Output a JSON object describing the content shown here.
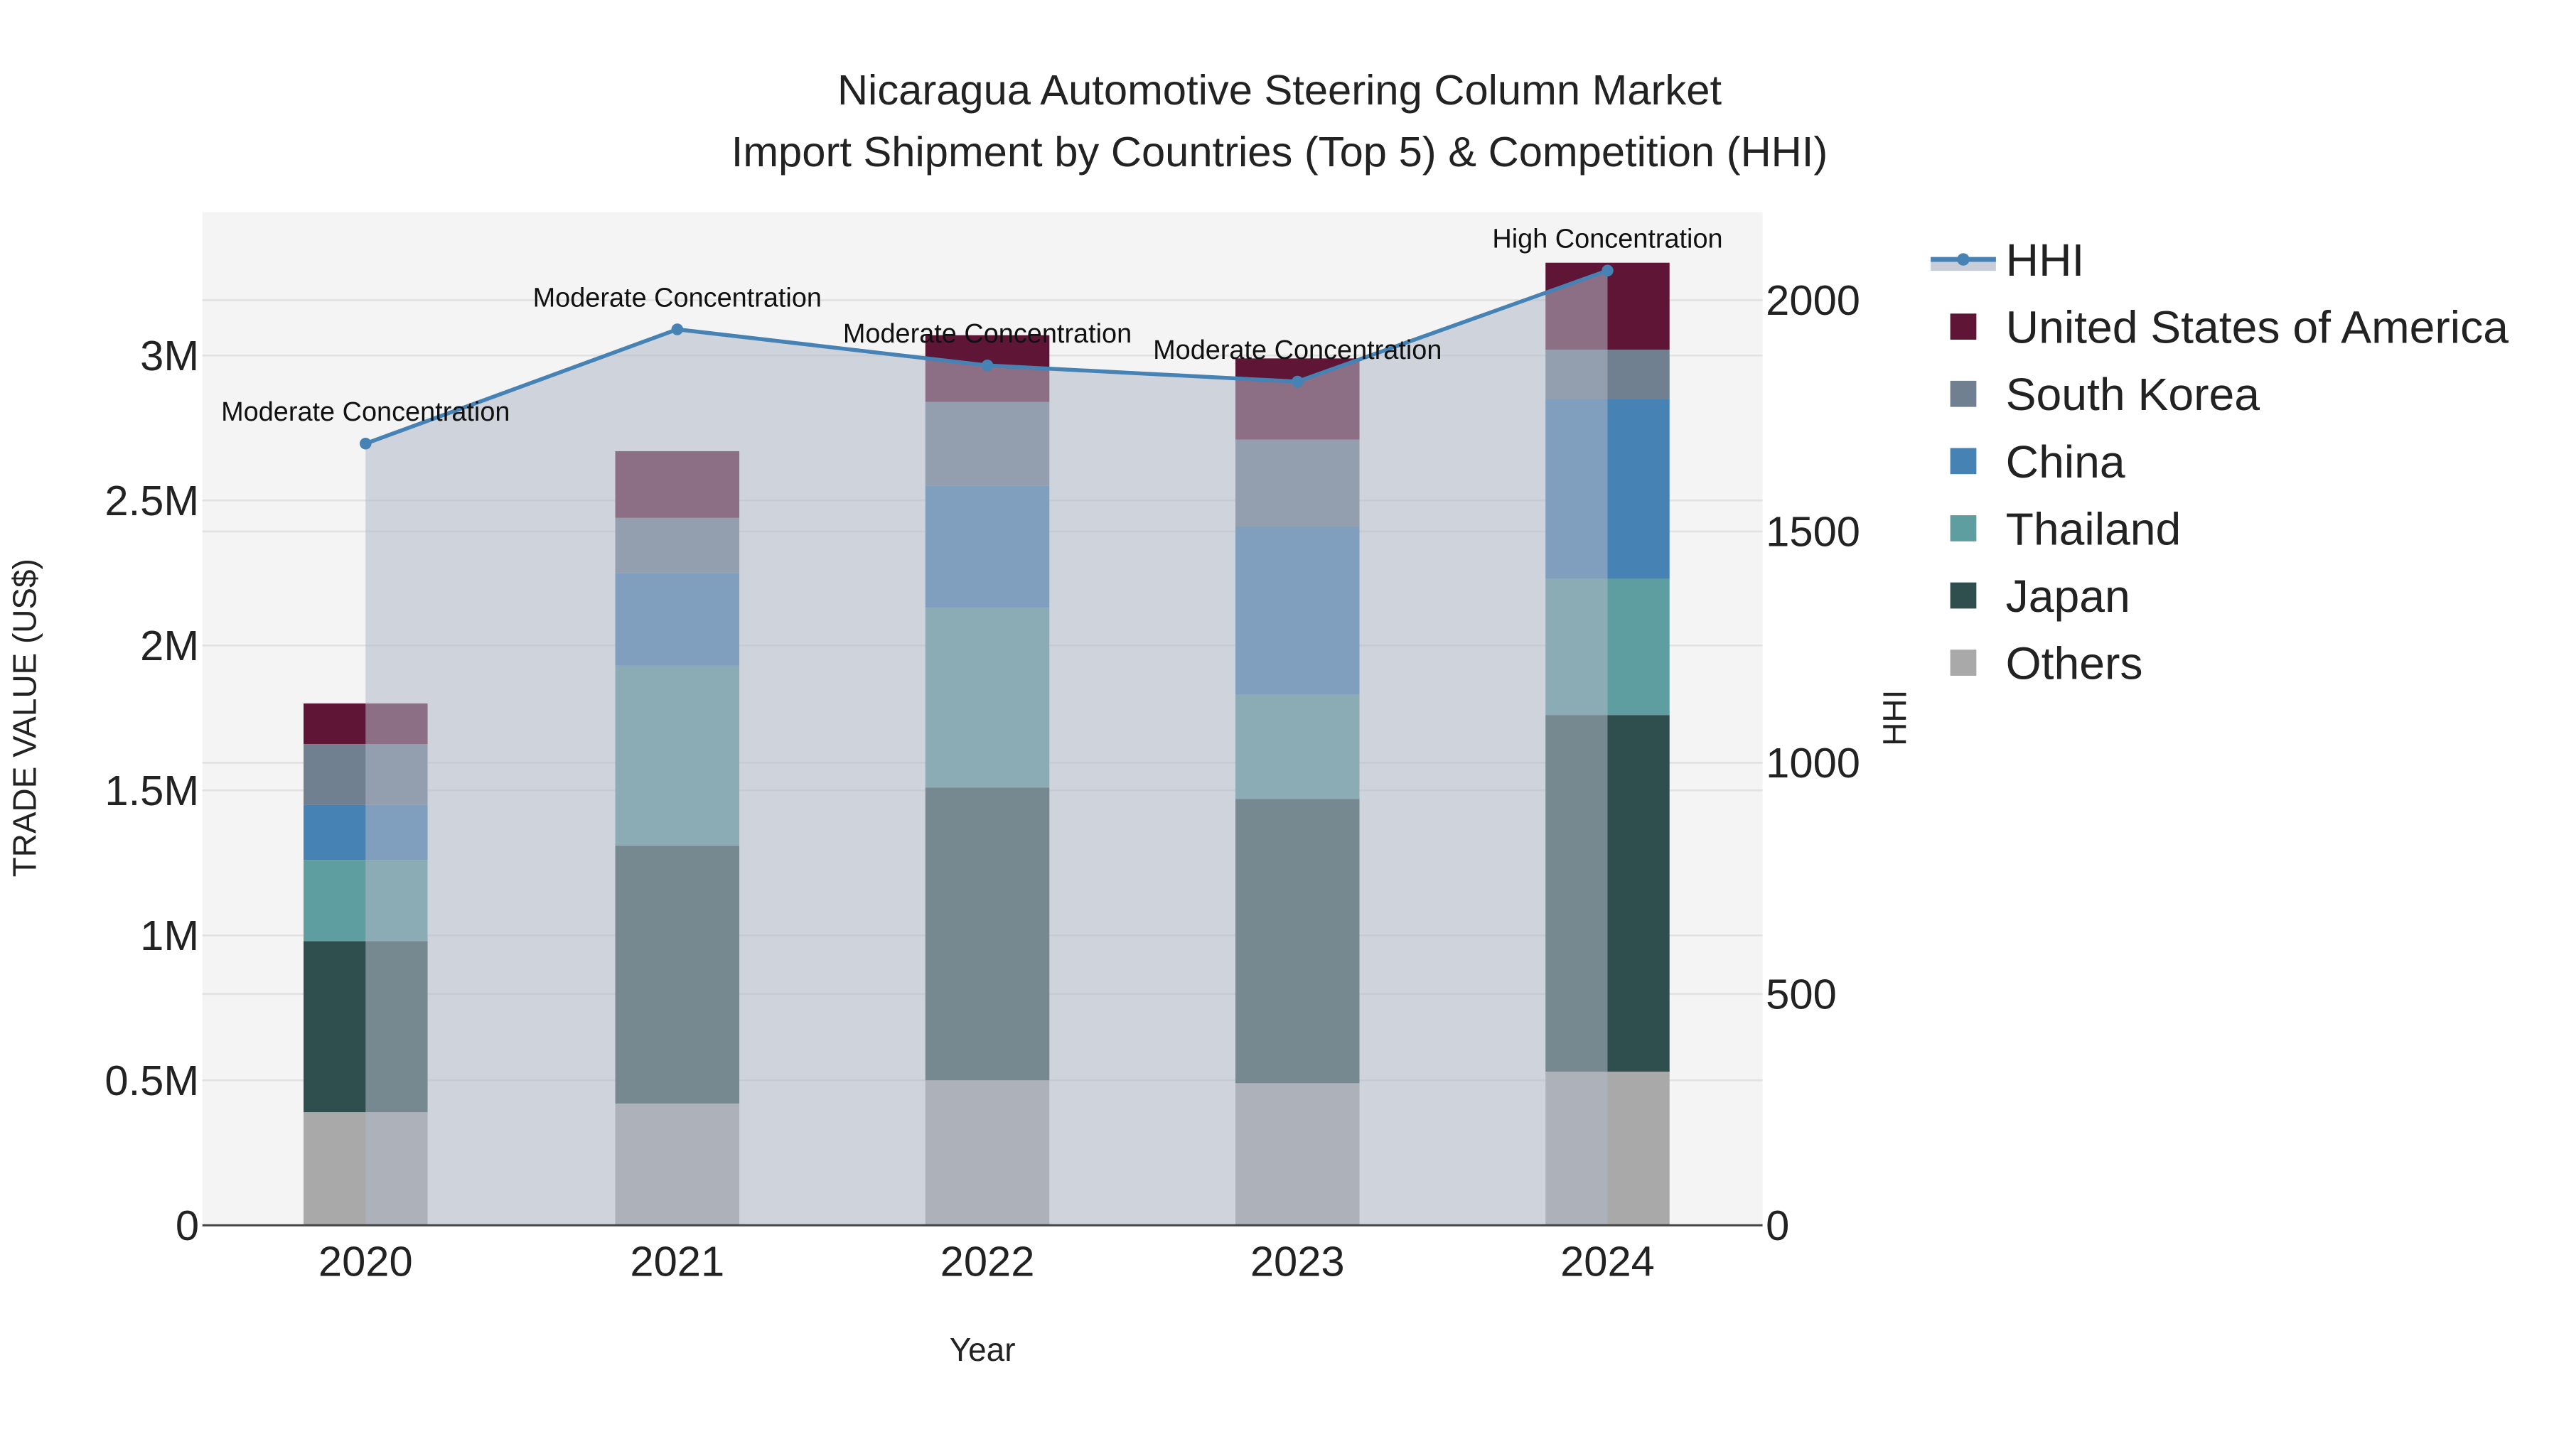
{
  "title_line1": "Nicaragua Automotive Steering Column Market",
  "title_line2": "Import Shipment by Countries (Top 5) & Competition (HHI)",
  "xaxis_title": "Year",
  "yaxis_left_title": "TRADE VALUE (US$)",
  "yaxis_right_title": "HHI",
  "left_ticks": [
    {
      "value": 0,
      "label": "0"
    },
    {
      "value": 500000,
      "label": "0.5M"
    },
    {
      "value": 1000000,
      "label": "1M"
    },
    {
      "value": 1500000,
      "label": "1.5M"
    },
    {
      "value": 2000000,
      "label": "2M"
    },
    {
      "value": 2500000,
      "label": "2.5M"
    },
    {
      "value": 3000000,
      "label": "3M"
    }
  ],
  "right_ticks": [
    {
      "value": 0,
      "label": "0"
    },
    {
      "value": 500,
      "label": "500"
    },
    {
      "value": 1000,
      "label": "1000"
    },
    {
      "value": 1500,
      "label": "1500"
    },
    {
      "value": 2000,
      "label": "2000"
    }
  ],
  "legend": [
    {
      "name": "HHI",
      "type": "line",
      "color": "#4682b4"
    },
    {
      "name": "United States of America",
      "type": "box",
      "color": "#5f1535"
    },
    {
      "name": "South Korea",
      "type": "box",
      "color": "#708090"
    },
    {
      "name": "China",
      "type": "box",
      "color": "#4682b4"
    },
    {
      "name": "Thailand",
      "type": "box",
      "color": "#5f9ea0"
    },
    {
      "name": "Japan",
      "type": "box",
      "color": "#2f4f4f"
    },
    {
      "name": "Others",
      "type": "box",
      "color": "#a9a9a9"
    }
  ],
  "chart_data": {
    "type": "bar",
    "stacked": true,
    "title": "Nicaragua Automotive Steering Column Market - Import Shipment by Countries (Top 5) & Competition (HHI)",
    "xlabel": "Year",
    "ylabel": "TRADE VALUE (US$)",
    "y2label": "HHI",
    "categories": [
      "2020",
      "2021",
      "2022",
      "2023",
      "2024"
    ],
    "ylim": [
      0,
      3480000
    ],
    "y2lim": [
      0,
      2190
    ],
    "grid": true,
    "legend_position": "right",
    "series": [
      {
        "name": "Others",
        "color": "#a9a9a9",
        "values": [
          390000,
          420000,
          500000,
          490000,
          530000
        ]
      },
      {
        "name": "Japan",
        "color": "#2f4f4f",
        "values": [
          590000,
          890000,
          1010000,
          980000,
          1230000
        ]
      },
      {
        "name": "Thailand",
        "color": "#5f9ea0",
        "values": [
          280000,
          620000,
          620000,
          360000,
          470000
        ]
      },
      {
        "name": "China",
        "color": "#4682b4",
        "values": [
          190000,
          320000,
          420000,
          580000,
          620000
        ]
      },
      {
        "name": "South Korea",
        "color": "#708090",
        "values": [
          210000,
          190000,
          290000,
          300000,
          170000
        ]
      },
      {
        "name": "United States of America",
        "color": "#5f1535",
        "values": [
          140000,
          230000,
          230000,
          280000,
          300000
        ]
      }
    ],
    "hhi": {
      "name": "HHI",
      "type": "line+area",
      "color": "#4682b4",
      "values": [
        1690,
        1937,
        1859,
        1824,
        2064
      ],
      "annotations": [
        "Moderate Concentration",
        "Moderate Concentration",
        "Moderate Concentration",
        "Moderate Concentration",
        "High Concentration"
      ]
    }
  }
}
